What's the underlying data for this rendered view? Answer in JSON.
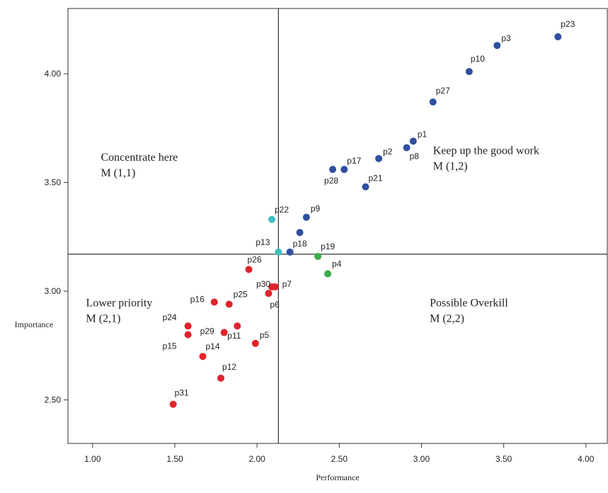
{
  "chart_data": {
    "type": "scatter",
    "title": "",
    "xlabel": "Performance",
    "ylabel": "Importance",
    "xlim": [
      0.85,
      4.13
    ],
    "ylim": [
      2.3,
      4.3
    ],
    "x_ticks": [
      "1.00",
      "1.50",
      "2.00",
      "2.50",
      "3.00",
      "3.50",
      "4.00"
    ],
    "y_ticks": [
      "2.50",
      "3.00",
      "3.50",
      "4.00"
    ],
    "grid": false,
    "reference_lines": {
      "x": 2.13,
      "y": 3.17
    },
    "colors": {
      "blue": "#2f4f9e",
      "teal": "#3fbfbf",
      "green": "#3aab4a",
      "red": "#e0232d"
    },
    "quadrants": [
      {
        "title": "Concentrate here",
        "code": "M (1,1)",
        "x": 1.05,
        "y": 3.6
      },
      {
        "title": "Keep up the good work",
        "code": "M (1,2)",
        "x": 3.07,
        "y": 3.63
      },
      {
        "title": "Lower priority",
        "code": "M (2,1)",
        "x": 0.96,
        "y": 2.93
      },
      {
        "title": "Possible Overkill",
        "code": "M (2,2)",
        "x": 3.05,
        "y": 2.93
      }
    ],
    "points": [
      {
        "label": "p23",
        "x": 3.83,
        "y": 4.17,
        "color": "blue"
      },
      {
        "label": "p3",
        "x": 3.46,
        "y": 4.13,
        "color": "blue"
      },
      {
        "label": "p10",
        "x": 3.29,
        "y": 4.01,
        "color": "blue"
      },
      {
        "label": "p27",
        "x": 3.07,
        "y": 3.87,
        "color": "blue"
      },
      {
        "label": "p1",
        "x": 2.95,
        "y": 3.69,
        "color": "blue"
      },
      {
        "label": "p8",
        "x": 2.91,
        "y": 3.66,
        "color": "blue"
      },
      {
        "label": "p2",
        "x": 2.74,
        "y": 3.61,
        "color": "blue"
      },
      {
        "label": "p17",
        "x": 2.53,
        "y": 3.56,
        "color": "blue"
      },
      {
        "label": "p28",
        "x": 2.46,
        "y": 3.56,
        "color": "blue"
      },
      {
        "label": "p21",
        "x": 2.66,
        "y": 3.48,
        "color": "blue"
      },
      {
        "label": "p9",
        "x": 2.3,
        "y": 3.34,
        "color": "blue"
      },
      {
        "label": "",
        "x": 2.26,
        "y": 3.27,
        "color": "blue"
      },
      {
        "label": "p18",
        "x": 2.2,
        "y": 3.18,
        "color": "blue"
      },
      {
        "label": "p22",
        "x": 2.09,
        "y": 3.33,
        "color": "teal"
      },
      {
        "label": "p13",
        "x": 2.13,
        "y": 3.18,
        "color": "teal"
      },
      {
        "label": "p19",
        "x": 2.37,
        "y": 3.16,
        "color": "green"
      },
      {
        "label": "p4",
        "x": 2.43,
        "y": 3.08,
        "color": "green"
      },
      {
        "label": "p26",
        "x": 1.95,
        "y": 3.1,
        "color": "red"
      },
      {
        "label": "p30",
        "x": 2.09,
        "y": 3.02,
        "color": "red"
      },
      {
        "label": "p7",
        "x": 2.11,
        "y": 3.02,
        "color": "red"
      },
      {
        "label": "p6",
        "x": 2.07,
        "y": 2.99,
        "color": "red"
      },
      {
        "label": "p16",
        "x": 1.74,
        "y": 2.95,
        "color": "red"
      },
      {
        "label": "p25",
        "x": 1.83,
        "y": 2.94,
        "color": "red"
      },
      {
        "label": "p24",
        "x": 1.58,
        "y": 2.84,
        "color": "red"
      },
      {
        "label": "p15",
        "x": 1.58,
        "y": 2.8,
        "color": "red"
      },
      {
        "label": "p29",
        "x": 1.8,
        "y": 2.81,
        "color": "red"
      },
      {
        "label": "p11",
        "x": 1.88,
        "y": 2.84,
        "color": "red"
      },
      {
        "label": "p5",
        "x": 1.99,
        "y": 2.76,
        "color": "red"
      },
      {
        "label": "p14",
        "x": 1.67,
        "y": 2.7,
        "color": "red"
      },
      {
        "label": "p12",
        "x": 1.78,
        "y": 2.6,
        "color": "red"
      },
      {
        "label": "p31",
        "x": 1.49,
        "y": 2.48,
        "color": "red"
      }
    ]
  }
}
